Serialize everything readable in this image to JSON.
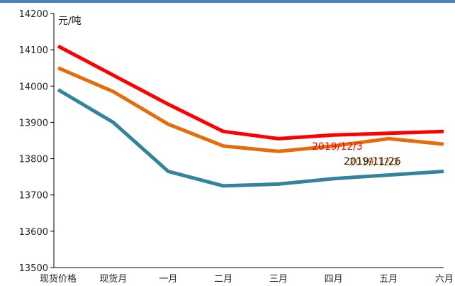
{
  "chart_data": {
    "type": "line",
    "title": "",
    "xlabel": "",
    "ylabel": "元/吨",
    "ylim": [
      13500,
      14200
    ],
    "yticks": [
      13500,
      13600,
      13700,
      13800,
      13900,
      14000,
      14100,
      14200
    ],
    "categories": [
      "现货价格",
      "现货月",
      "一月",
      "二月",
      "三月",
      "四月",
      "五月",
      "六月"
    ],
    "series": [
      {
        "name": "2019/12/3",
        "color": "#ff0000",
        "values": [
          14110,
          14030,
          13950,
          13875,
          13855,
          13865,
          13870,
          13875
        ]
      },
      {
        "name": "2019/12/2",
        "color": "#e46c0a",
        "values": [
          14050,
          13985,
          13895,
          13835,
          13820,
          13835,
          13855,
          13840
        ]
      },
      {
        "name": "2019/11/26",
        "color": "#31849b",
        "values": [
          13990,
          13900,
          13765,
          13725,
          13730,
          13745,
          13755,
          13765
        ]
      }
    ],
    "annotations": [
      {
        "text": "2019/12/3",
        "color": "#ff0000"
      },
      {
        "text": "2019/12/2",
        "color": "#e46c0a"
      },
      {
        "text": "2019/11/26",
        "color": "#1a1a1a"
      }
    ],
    "grid": false,
    "legend": "none",
    "accent_color": "#4f81bd"
  }
}
